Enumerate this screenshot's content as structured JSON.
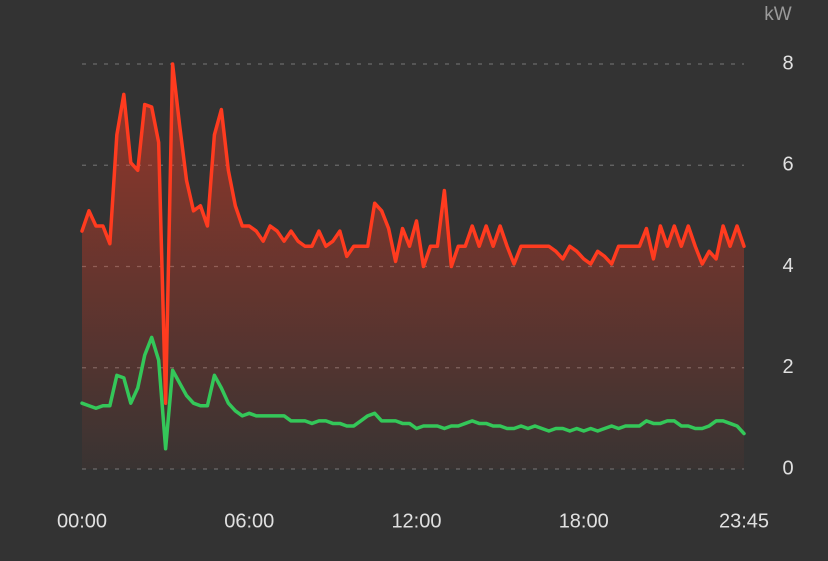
{
  "chart_data": {
    "type": "line",
    "y_label": "kW",
    "x": [
      0,
      0.25,
      0.5,
      0.75,
      1,
      1.25,
      1.5,
      1.75,
      2,
      2.25,
      2.5,
      2.75,
      3,
      3.25,
      3.5,
      3.75,
      4,
      4.25,
      4.5,
      4.75,
      5,
      5.25,
      5.5,
      5.75,
      6,
      6.25,
      6.5,
      6.75,
      7,
      7.25,
      7.5,
      7.75,
      8,
      8.25,
      8.5,
      8.75,
      9,
      9.25,
      9.5,
      9.75,
      10,
      10.25,
      10.5,
      10.75,
      11,
      11.25,
      11.5,
      11.75,
      12,
      12.25,
      12.5,
      12.75,
      13,
      13.25,
      13.5,
      13.75,
      14,
      14.25,
      14.5,
      14.75,
      15,
      15.25,
      15.5,
      15.75,
      16,
      16.25,
      16.5,
      16.75,
      17,
      17.25,
      17.5,
      17.75,
      18,
      18.25,
      18.5,
      18.75,
      19,
      19.25,
      19.5,
      19.75,
      20,
      20.25,
      20.5,
      20.75,
      21,
      21.25,
      21.5,
      21.75,
      22,
      22.25,
      22.5,
      22.75,
      23,
      23.25,
      23.5,
      23.75
    ],
    "series": [
      {
        "color": "#ff3b1f",
        "fill": true,
        "values": [
          4.7,
          5.1,
          4.8,
          4.8,
          4.45,
          6.6,
          7.4,
          6.05,
          5.9,
          7.2,
          7.15,
          6.45,
          1.3,
          8.0,
          6.8,
          5.7,
          5.1,
          5.2,
          4.8,
          6.6,
          7.1,
          5.9,
          5.2,
          4.8,
          4.8,
          4.7,
          4.5,
          4.8,
          4.7,
          4.5,
          4.7,
          4.5,
          4.4,
          4.4,
          4.7,
          4.4,
          4.5,
          4.7,
          4.2,
          4.4,
          4.4,
          4.4,
          5.25,
          5.1,
          4.75,
          4.1,
          4.75,
          4.4,
          4.9,
          4.0,
          4.4,
          4.4,
          5.5,
          4.0,
          4.4,
          4.4,
          4.8,
          4.4,
          4.8,
          4.4,
          4.8,
          4.4,
          4.05,
          4.4,
          4.4,
          4.4,
          4.4,
          4.4,
          4.3,
          4.15,
          4.4,
          4.3,
          4.15,
          4.05,
          4.3,
          4.2,
          4.05,
          4.4,
          4.4,
          4.4,
          4.4,
          4.75,
          4.15,
          4.8,
          4.4,
          4.8,
          4.4,
          4.8,
          4.4,
          4.05,
          4.3,
          4.15,
          4.8,
          4.4,
          4.8,
          4.4
        ]
      },
      {
        "color": "#34c759",
        "fill": false,
        "values": [
          1.3,
          1.25,
          1.2,
          1.25,
          1.25,
          1.85,
          1.8,
          1.3,
          1.6,
          2.25,
          2.6,
          2.15,
          0.4,
          1.95,
          1.7,
          1.45,
          1.3,
          1.25,
          1.25,
          1.85,
          1.6,
          1.3,
          1.15,
          1.05,
          1.1,
          1.05,
          1.05,
          1.05,
          1.05,
          1.05,
          0.95,
          0.95,
          0.95,
          0.9,
          0.95,
          0.95,
          0.9,
          0.9,
          0.85,
          0.85,
          0.95,
          1.05,
          1.1,
          0.95,
          0.95,
          0.95,
          0.9,
          0.9,
          0.8,
          0.85,
          0.85,
          0.85,
          0.8,
          0.85,
          0.85,
          0.9,
          0.95,
          0.9,
          0.9,
          0.85,
          0.85,
          0.8,
          0.8,
          0.85,
          0.8,
          0.85,
          0.8,
          0.75,
          0.8,
          0.8,
          0.75,
          0.8,
          0.75,
          0.8,
          0.75,
          0.8,
          0.85,
          0.8,
          0.85,
          0.85,
          0.85,
          0.95,
          0.9,
          0.9,
          0.95,
          0.95,
          0.85,
          0.85,
          0.8,
          0.8,
          0.85,
          0.95,
          0.95,
          0.9,
          0.85,
          0.7
        ]
      }
    ],
    "xlim": [
      0,
      23.75
    ],
    "xticks": [
      {
        "value": 0,
        "label": "00:00"
      },
      {
        "value": 6,
        "label": "06:00"
      },
      {
        "value": 12,
        "label": "12:00"
      },
      {
        "value": 18,
        "label": "18:00"
      },
      {
        "value": 23.75,
        "label": "23:45"
      }
    ],
    "ylim": [
      0,
      8
    ],
    "yticks": [
      0,
      2,
      4,
      6,
      8
    ],
    "grid": true
  }
}
